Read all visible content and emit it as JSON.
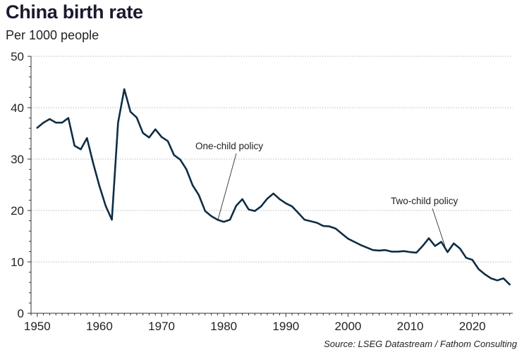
{
  "chart_data": {
    "type": "line",
    "title": "China birth rate",
    "subtitle": "Per 1000 people",
    "xlabel": "",
    "ylabel": "Per 1000 people",
    "xlim": [
      1949,
      2026.5
    ],
    "ylim": [
      0,
      50
    ],
    "xticks": [
      1950,
      1960,
      1970,
      1980,
      1990,
      2000,
      2010,
      2020
    ],
    "yticks": [
      0,
      10,
      20,
      30,
      40,
      50
    ],
    "grid": true,
    "line_color": "#0d2d45",
    "series": [
      {
        "name": "Birth rate",
        "x": [
          1950,
          1951,
          1952,
          1953,
          1954,
          1955,
          1956,
          1957,
          1958,
          1959,
          1960,
          1961,
          1962,
          1963,
          1964,
          1965,
          1966,
          1967,
          1968,
          1969,
          1970,
          1971,
          1972,
          1973,
          1974,
          1975,
          1976,
          1977,
          1978,
          1979,
          1980,
          1981,
          1982,
          1983,
          1984,
          1985,
          1986,
          1987,
          1988,
          1989,
          1990,
          1991,
          1992,
          1993,
          1994,
          1995,
          1996,
          1997,
          1998,
          1999,
          2000,
          2001,
          2002,
          2003,
          2004,
          2005,
          2006,
          2007,
          2008,
          2009,
          2010,
          2011,
          2012,
          2013,
          2014,
          2015,
          2016,
          2017,
          2018,
          2019,
          2020,
          2021,
          2022,
          2023,
          2024,
          2025,
          2026
        ],
        "values": [
          36.1,
          37.1,
          37.8,
          37.1,
          37.1,
          38.0,
          32.6,
          31.9,
          34.1,
          29.2,
          24.8,
          20.9,
          18.2,
          37.1,
          43.6,
          39.2,
          38.1,
          35.1,
          34.2,
          35.8,
          34.3,
          33.5,
          30.8,
          29.9,
          28.0,
          24.9,
          23.0,
          19.9,
          18.9,
          18.2,
          17.8,
          18.2,
          20.9,
          22.2,
          20.2,
          19.9,
          20.8,
          22.3,
          23.3,
          22.2,
          21.4,
          20.8,
          19.5,
          18.2,
          17.9,
          17.6,
          17.0,
          16.9,
          16.5,
          15.5,
          14.5,
          13.9,
          13.3,
          12.8,
          12.3,
          12.2,
          12.3,
          12.0,
          12.0,
          12.1,
          11.9,
          11.8,
          13.1,
          14.6,
          13.1,
          13.9,
          11.9,
          13.6,
          12.6,
          10.8,
          10.4,
          8.6,
          7.6,
          6.8,
          6.4,
          6.8,
          5.6
        ]
      }
    ],
    "annotations": [
      {
        "text": "One-child policy",
        "year": 1979
      },
      {
        "text": "Two-child policy",
        "year": 2016
      }
    ],
    "source": "Source: LSEG Datastream / Fathom Consulting"
  }
}
